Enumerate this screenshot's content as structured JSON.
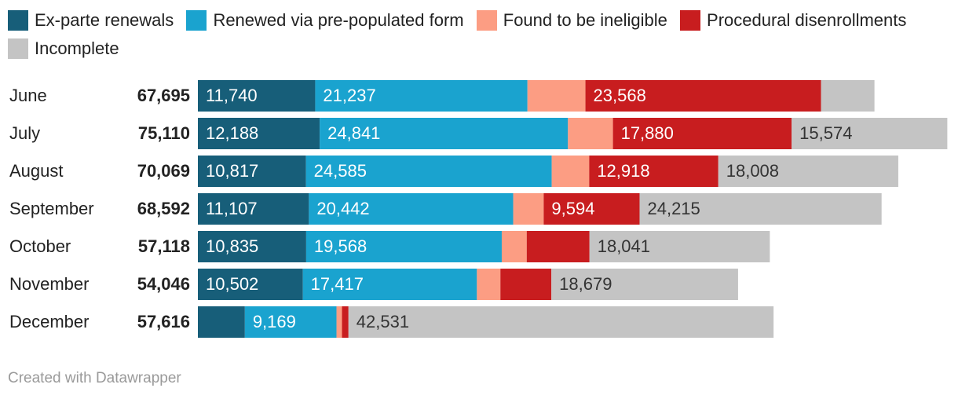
{
  "colors": {
    "ex_parte": "#175e79",
    "pre_populated": "#1aa3cf",
    "ineligible": "#fc9d83",
    "procedural": "#c81d1f",
    "incomplete": "#c4c4c4"
  },
  "footer": "Created with Datawrapper",
  "chart_data": {
    "type": "bar",
    "orientation": "horizontal",
    "stacked": true,
    "legend_placement": "top",
    "grid": false,
    "xlim": [
      0,
      75110
    ],
    "categories": [
      "June",
      "July",
      "August",
      "September",
      "October",
      "November",
      "December"
    ],
    "totals": [
      "67,695",
      "75,110",
      "70,069",
      "68,592",
      "57,118",
      "54,046",
      "57,616"
    ],
    "series": [
      {
        "name": "Ex-parte renewals",
        "color_key": "ex_parte",
        "values": [
          11740,
          12188,
          10817,
          11107,
          10835,
          10502,
          4700
        ],
        "labels": [
          "11,740",
          "12,188",
          "10,817",
          "11,107",
          "10,835",
          "10,502",
          ""
        ]
      },
      {
        "name": "Renewed via pre-populated form",
        "color_key": "pre_populated",
        "values": [
          21237,
          24841,
          24585,
          20442,
          19568,
          17417,
          9169
        ],
        "labels": [
          "21,237",
          "24,841",
          "24,585",
          "20,442",
          "19,568",
          "17,417",
          "9,169"
        ]
      },
      {
        "name": "Found to be ineligible",
        "color_key": "ineligible",
        "values": [
          5800,
          4500,
          3750,
          3050,
          2500,
          2350,
          550
        ],
        "labels": [
          "",
          "",
          "",
          "",
          "",
          "",
          ""
        ]
      },
      {
        "name": "Procedural disenrollments",
        "color_key": "procedural",
        "values": [
          23568,
          17880,
          12918,
          9594,
          6280,
          5100,
          650
        ],
        "labels": [
          "23,568",
          "17,880",
          "12,918",
          "9,594",
          "",
          "",
          ""
        ]
      },
      {
        "name": "Incomplete",
        "color_key": "incomplete",
        "values": [
          5350,
          15574,
          18008,
          24215,
          18041,
          18679,
          42531
        ],
        "labels": [
          "",
          "15,574",
          "18,008",
          "24,215",
          "18,041",
          "18,679",
          "42,531"
        ]
      }
    ]
  }
}
